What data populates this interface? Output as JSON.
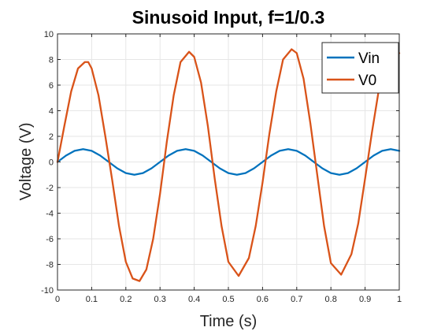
{
  "chart_data": {
    "type": "line",
    "title": "Sinusoid Input, f=1/0.3",
    "xlabel": "Time (s)",
    "ylabel": "Voltage (V)",
    "xlim": [
      0,
      1
    ],
    "ylim": [
      -10,
      10
    ],
    "xticks": [
      0,
      0.1,
      0.2,
      0.3,
      0.4,
      0.5,
      0.6,
      0.7,
      0.8,
      0.9,
      1
    ],
    "xtick_labels": [
      "0",
      "0.1",
      "0.2",
      "0.3",
      "0.4",
      "0.5",
      "0.6",
      "0.7",
      "0.8",
      "0.9",
      "1"
    ],
    "yticks": [
      -10,
      -8,
      -6,
      -4,
      -2,
      0,
      2,
      4,
      6,
      8,
      10
    ],
    "ytick_labels": [
      "-10",
      "-8",
      "-6",
      "-4",
      "-2",
      "0",
      "2",
      "4",
      "6",
      "8",
      "10"
    ],
    "grid": true,
    "legend_position": "top-right",
    "series": [
      {
        "name": "Vin",
        "color": "#0072BD",
        "x": [
          0,
          0.025,
          0.05,
          0.075,
          0.1,
          0.125,
          0.15,
          0.175,
          0.2,
          0.225,
          0.25,
          0.275,
          0.3,
          0.325,
          0.35,
          0.375,
          0.4,
          0.425,
          0.45,
          0.475,
          0.5,
          0.525,
          0.55,
          0.575,
          0.6,
          0.625,
          0.65,
          0.675,
          0.7,
          0.725,
          0.75,
          0.775,
          0.8,
          0.825,
          0.85,
          0.875,
          0.9,
          0.925,
          0.95,
          0.975,
          1
        ],
        "y": [
          0,
          0.5,
          0.87,
          1,
          0.87,
          0.5,
          0,
          -0.5,
          -0.87,
          -1,
          -0.87,
          -0.5,
          0,
          0.5,
          0.87,
          1,
          0.87,
          0.5,
          0,
          -0.5,
          -0.87,
          -1,
          -0.87,
          -0.5,
          0,
          0.5,
          0.87,
          1,
          0.87,
          0.5,
          0,
          -0.5,
          -0.87,
          -1,
          -0.87,
          -0.5,
          0,
          0.5,
          0.87,
          1,
          0.87
        ]
      },
      {
        "name": "V0",
        "color": "#D95319",
        "x": [
          0,
          0.02,
          0.04,
          0.06,
          0.08,
          0.09,
          0.1,
          0.12,
          0.14,
          0.16,
          0.18,
          0.2,
          0.22,
          0.24,
          0.26,
          0.28,
          0.3,
          0.32,
          0.34,
          0.36,
          0.385,
          0.4,
          0.42,
          0.44,
          0.46,
          0.48,
          0.5,
          0.53,
          0.56,
          0.58,
          0.6,
          0.62,
          0.64,
          0.66,
          0.685,
          0.7,
          0.72,
          0.74,
          0.76,
          0.78,
          0.8,
          0.83,
          0.86,
          0.88,
          0.9,
          0.92,
          0.94,
          0.96,
          0.985,
          1
        ],
        "y": [
          0,
          2.8,
          5.5,
          7.3,
          7.8,
          7.8,
          7.3,
          5.2,
          2.0,
          -1.4,
          -5.0,
          -7.8,
          -9.1,
          -9.3,
          -8.4,
          -6.0,
          -2.5,
          1.6,
          5.2,
          7.8,
          8.6,
          8.2,
          6.2,
          2.8,
          -1.3,
          -5.0,
          -7.8,
          -8.9,
          -7.5,
          -5.0,
          -1.6,
          2.2,
          5.5,
          8.0,
          8.8,
          8.5,
          6.5,
          3.0,
          -1.0,
          -5.0,
          -7.9,
          -8.8,
          -7.2,
          -4.8,
          -1.3,
          2.3,
          5.6,
          8.0,
          8.9,
          8.5
        ]
      }
    ]
  }
}
